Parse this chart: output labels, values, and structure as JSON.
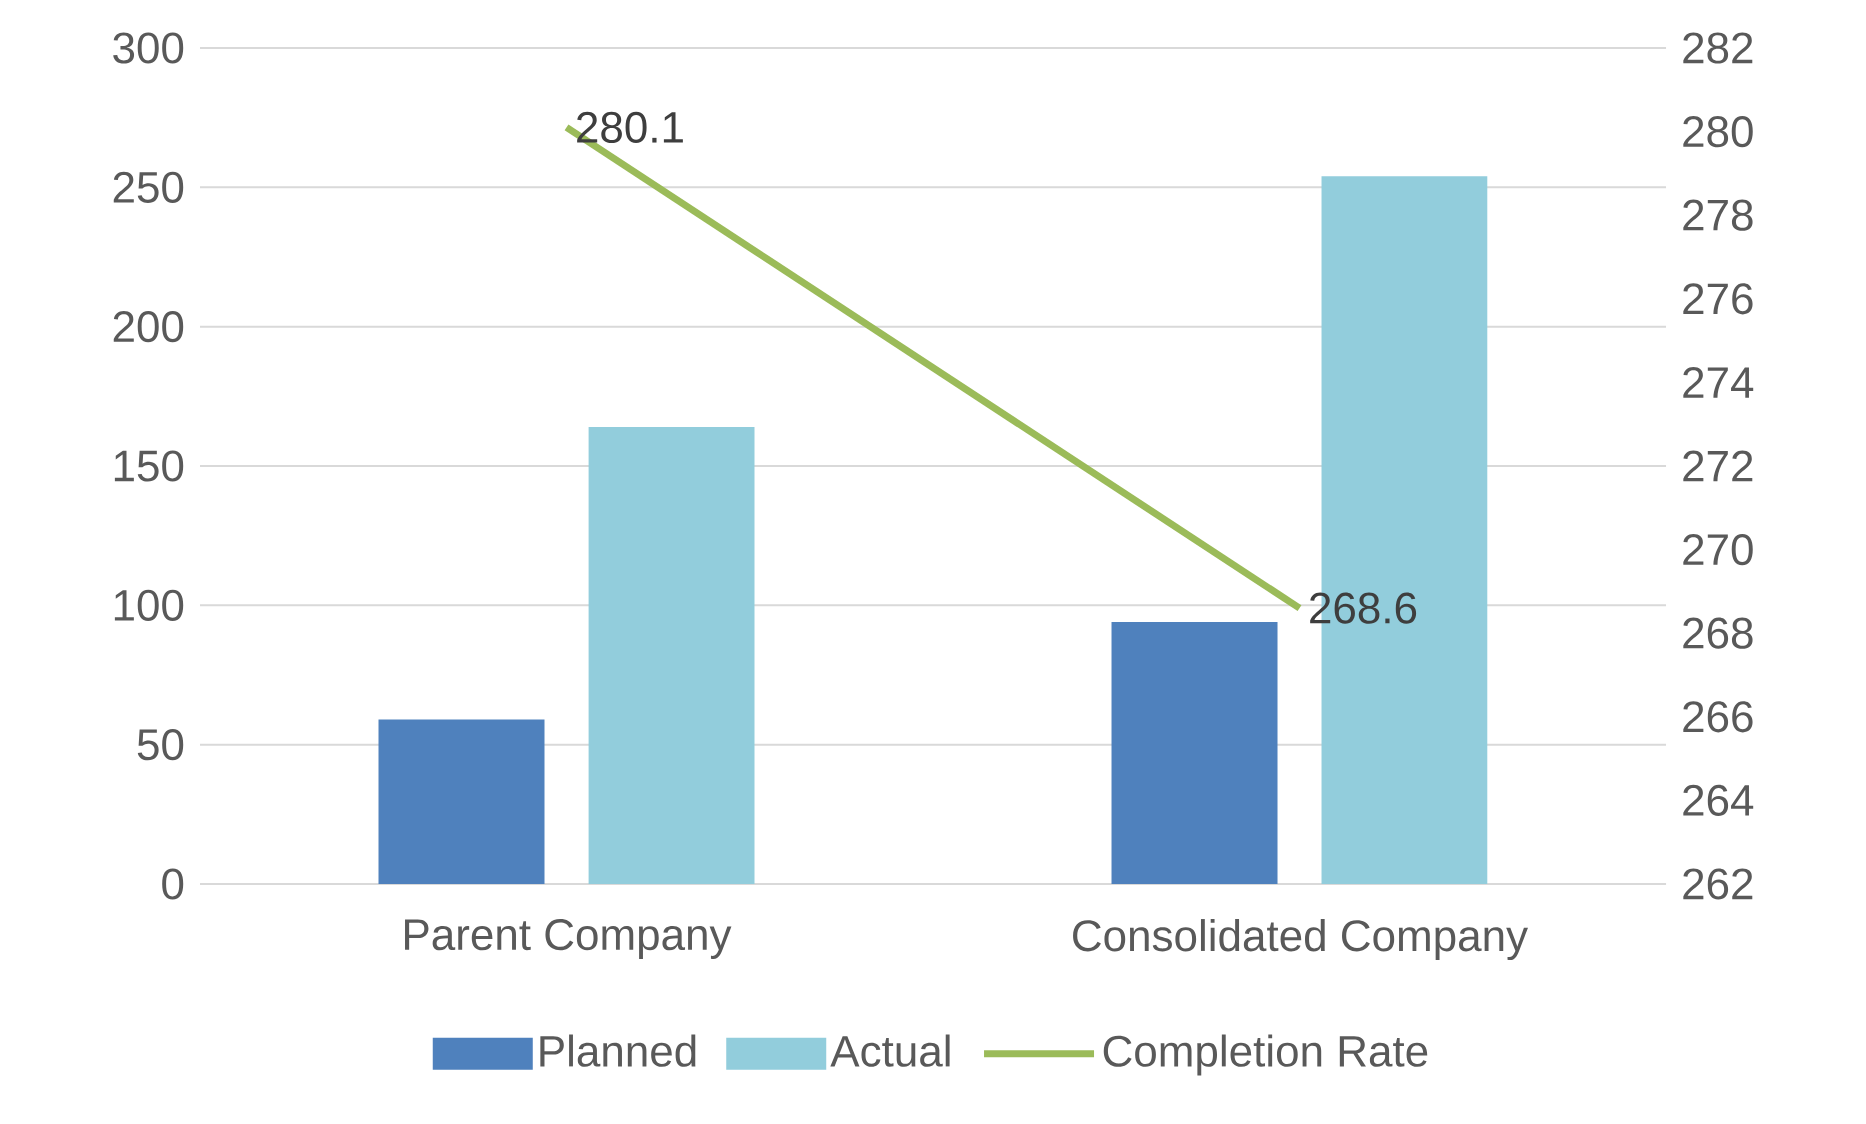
{
  "chart_data": {
    "type": "bar",
    "categories": [
      "Parent Company",
      "Consolidated Company"
    ],
    "series": [
      {
        "name": "Planned",
        "color": "#4f81bd",
        "values": [
          59,
          94
        ]
      },
      {
        "name": "Actual",
        "color": "#92cddc",
        "values": [
          164,
          254
        ]
      },
      {
        "name": "Completion Rate",
        "type": "line",
        "axis": "y2",
        "color": "#9bbb59",
        "values": [
          280.1,
          268.6
        ],
        "value_labels": [
          "280.1",
          "268.6"
        ],
        "marker": "none"
      }
    ],
    "ylim": [
      0,
      300
    ],
    "yticks": [
      0,
      50,
      100,
      150,
      200,
      250,
      300
    ],
    "y2lim": [
      262,
      282
    ],
    "y2ticks": [
      262,
      264,
      266,
      268,
      270,
      272,
      274,
      276,
      278,
      280,
      282
    ],
    "grid": "y",
    "legend": "bottom"
  }
}
